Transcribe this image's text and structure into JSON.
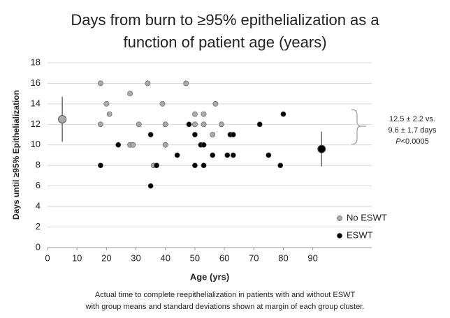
{
  "chart_data": {
    "type": "scatter",
    "title": [
      "Days from burn to ≥95% epithelialization as a",
      "function of patient age (years)"
    ],
    "xlabel": "Age (yrs)",
    "ylabel": "Days until ≥95% Epithelialization",
    "xlim": [
      0,
      110
    ],
    "xticks": [
      0,
      10,
      20,
      30,
      40,
      50,
      60,
      70,
      80,
      90
    ],
    "ylim": [
      0,
      18
    ],
    "yticks": [
      0,
      2,
      4,
      6,
      8,
      10,
      12,
      14,
      16,
      18
    ],
    "grid": true,
    "legend": "lower right",
    "series": [
      {
        "name": "No ESWT",
        "color": "#aaaaaa",
        "x": [
          18,
          18,
          20,
          21,
          28,
          28,
          29,
          31,
          34,
          36,
          39,
          40,
          40,
          47,
          50,
          50,
          53,
          53,
          56,
          57,
          59
        ],
        "values": [
          16,
          12,
          14,
          13,
          15,
          10,
          10,
          12,
          16,
          8,
          14,
          12,
          10,
          16,
          13,
          12,
          13,
          12,
          11,
          14,
          12
        ],
        "mean_x": 5,
        "mean": 12.5,
        "sd": 2.2
      },
      {
        "name": "ESWT",
        "color": "#000000",
        "x": [
          18,
          24,
          35,
          35,
          37,
          44,
          48,
          50,
          50,
          52,
          53,
          53,
          56,
          61,
          62,
          63,
          63,
          72,
          75,
          79,
          80
        ],
        "values": [
          8,
          10,
          11,
          6,
          8,
          9,
          12,
          11,
          8,
          10,
          10,
          8,
          9,
          9,
          11,
          11,
          9,
          12,
          9,
          8,
          13
        ],
        "mean_x": 93,
        "mean": 9.6,
        "sd": 1.7
      }
    ],
    "annotation": [
      "12.5 ± 2.2 vs.",
      "9.6 ± 1.7 days"
    ],
    "p_value": {
      "symbol": "P",
      "text": "<0.0005"
    },
    "caption": [
      "Actual time to complete reepithelialization in patients with and without ESWT",
      "with group means and standard deviations shown at margin of each group cluster."
    ]
  }
}
